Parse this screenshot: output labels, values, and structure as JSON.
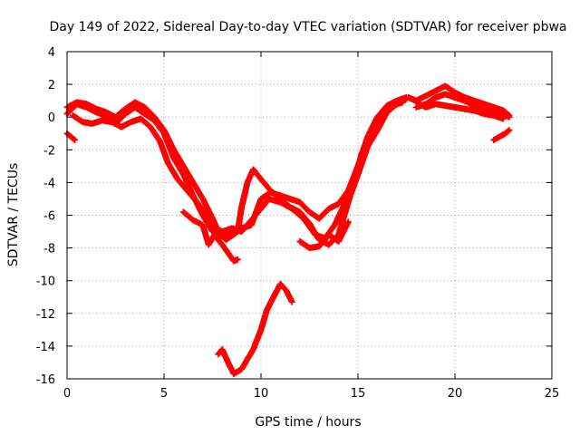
{
  "chart_data": {
    "type": "scatter",
    "title": "Day 149 of 2022, Sidereal Day-to-day VTEC variation (SDTVAR) for receiver pbwa",
    "xlabel": "GPS time / hours",
    "ylabel": "SDTVAR / TECUs",
    "xlim": [
      0,
      25
    ],
    "ylim": [
      -16,
      4
    ],
    "xticks": [
      0,
      5,
      10,
      15,
      20,
      25
    ],
    "yticks": [
      -16,
      -14,
      -12,
      -10,
      -8,
      -6,
      -4,
      -2,
      0,
      2,
      4
    ],
    "grid": true,
    "legend": "none",
    "series_color": "#ff0000",
    "series": [
      {
        "name": "trace-1",
        "points": [
          [
            0,
            0.2
          ],
          [
            0.5,
            0.8
          ],
          [
            1.0,
            0.6
          ],
          [
            1.5,
            0.3
          ],
          [
            2.0,
            0.1
          ],
          [
            2.5,
            -0.4
          ],
          [
            3.0,
            0.2
          ],
          [
            3.5,
            0.6
          ],
          [
            4.0,
            0.2
          ],
          [
            4.5,
            -0.2
          ],
          [
            5.0,
            -1.0
          ],
          [
            5.5,
            -2.5
          ],
          [
            6.0,
            -3.5
          ],
          [
            6.5,
            -4.8
          ],
          [
            7.0,
            -6.0
          ],
          [
            7.5,
            -7.0
          ],
          [
            8.0,
            -7.3
          ],
          [
            8.5,
            -7.0
          ],
          [
            9.0,
            -6.8
          ],
          [
            9.5,
            -6.6
          ],
          [
            10.0,
            -5.0
          ],
          [
            10.5,
            -4.6
          ],
          [
            11.0,
            -4.8
          ],
          [
            11.5,
            -5.0
          ],
          [
            12.0,
            -5.2
          ],
          [
            12.5,
            -5.8
          ],
          [
            13.0,
            -6.2
          ],
          [
            13.5,
            -5.6
          ],
          [
            14.0,
            -5.3
          ],
          [
            14.5,
            -4.5
          ],
          [
            15.0,
            -3.0
          ],
          [
            15.5,
            -1.2
          ],
          [
            16.0,
            0.0
          ],
          [
            16.5,
            0.7
          ],
          [
            17.0,
            1.0
          ],
          [
            17.5,
            1.2
          ]
        ]
      },
      {
        "name": "trace-2",
        "points": [
          [
            0,
            0.6
          ],
          [
            0.5,
            0.9
          ],
          [
            1.0,
            0.8
          ],
          [
            1.5,
            0.5
          ],
          [
            2.0,
            0.3
          ],
          [
            2.5,
            0.0
          ],
          [
            3.0,
            0.5
          ],
          [
            3.5,
            0.9
          ],
          [
            4.0,
            0.6
          ],
          [
            4.5,
            0.0
          ],
          [
            5.0,
            -0.8
          ],
          [
            5.5,
            -2.0
          ],
          [
            6.0,
            -3.0
          ],
          [
            6.5,
            -4.0
          ],
          [
            7.0,
            -5.0
          ],
          [
            7.5,
            -6.2
          ],
          [
            7.8,
            -7.0
          ],
          [
            8.2,
            -7.5
          ],
          [
            8.8,
            -7.0
          ],
          [
            9.0,
            -5.5
          ],
          [
            9.3,
            -4.0
          ],
          [
            9.6,
            -3.2
          ],
          [
            10.0,
            -3.8
          ],
          [
            10.5,
            -4.5
          ],
          [
            11.0,
            -5.0
          ],
          [
            11.5,
            -5.5
          ],
          [
            12.0,
            -5.8
          ],
          [
            12.5,
            -6.5
          ],
          [
            13.0,
            -7.5
          ],
          [
            13.5,
            -7.8
          ],
          [
            14.0,
            -7.2
          ],
          [
            14.3,
            -6.0
          ],
          [
            14.6,
            -4.8
          ],
          [
            15.0,
            -3.5
          ],
          [
            15.5,
            -1.8
          ],
          [
            16.0,
            -0.8
          ],
          [
            16.5,
            0.3
          ],
          [
            17.0,
            0.8
          ],
          [
            17.5,
            1.1
          ]
        ]
      },
      {
        "name": "trace-3",
        "points": [
          [
            0.3,
            0.1
          ],
          [
            0.8,
            -0.3
          ],
          [
            1.3,
            -0.4
          ],
          [
            1.8,
            -0.2
          ],
          [
            2.3,
            -0.3
          ],
          [
            2.8,
            -0.6
          ],
          [
            3.3,
            -0.3
          ],
          [
            3.8,
            -0.1
          ],
          [
            4.3,
            -0.6
          ],
          [
            4.8,
            -1.5
          ],
          [
            5.2,
            -2.8
          ],
          [
            5.7,
            -3.8
          ],
          [
            6.2,
            -4.5
          ],
          [
            6.7,
            -5.2
          ],
          [
            7.2,
            -6.0
          ],
          [
            7.6,
            -6.8
          ],
          [
            8.0,
            -7.0
          ],
          [
            8.5,
            -6.8
          ],
          [
            9.0,
            -7.0
          ],
          [
            9.5,
            -6.3
          ],
          [
            10.0,
            -5.6
          ],
          [
            10.4,
            -5.0
          ],
          [
            11.0,
            -5.2
          ],
          [
            11.6,
            -5.6
          ],
          [
            12.2,
            -6.2
          ],
          [
            12.8,
            -7.2
          ],
          [
            13.3,
            -7.4
          ],
          [
            13.8,
            -6.6
          ],
          [
            14.2,
            -5.6
          ],
          [
            14.8,
            -4.0
          ],
          [
            15.2,
            -2.2
          ],
          [
            15.8,
            -0.6
          ],
          [
            16.3,
            0.2
          ],
          [
            16.8,
            0.7
          ],
          [
            17.3,
            0.9
          ]
        ]
      },
      {
        "name": "trace-4",
        "points": [
          [
            6.0,
            -5.8
          ],
          [
            6.5,
            -6.3
          ],
          [
            7.0,
            -6.6
          ],
          [
            7.3,
            -7.8
          ],
          [
            7.6,
            -7.2
          ],
          [
            8.0,
            -7.8
          ],
          [
            8.3,
            -8.3
          ],
          [
            8.6,
            -8.8
          ],
          [
            8.8,
            -8.7
          ]
        ]
      },
      {
        "name": "trace-5",
        "points": [
          [
            12.0,
            -7.6
          ],
          [
            12.5,
            -8.0
          ],
          [
            13.0,
            -7.9
          ],
          [
            13.5,
            -7.2
          ],
          [
            14.0,
            -7.6
          ],
          [
            14.5,
            -6.4
          ]
        ]
      },
      {
        "name": "trace-6",
        "points": [
          [
            0,
            -1.0
          ],
          [
            0.2,
            -1.2
          ],
          [
            0.4,
            -1.4
          ]
        ]
      },
      {
        "name": "trace-7",
        "points": [
          [
            7.8,
            -14.5
          ],
          [
            8.0,
            -14.2
          ],
          [
            8.3,
            -15.0
          ],
          [
            8.6,
            -15.7
          ],
          [
            9.0,
            -15.4
          ],
          [
            9.3,
            -14.8
          ],
          [
            9.6,
            -14.2
          ],
          [
            10.0,
            -13.0
          ],
          [
            10.3,
            -11.8
          ],
          [
            10.6,
            -11.1
          ],
          [
            11.0,
            -10.2
          ],
          [
            11.3,
            -10.6
          ],
          [
            11.6,
            -11.3
          ]
        ]
      },
      {
        "name": "trace-8",
        "points": [
          [
            17.6,
            1.2
          ],
          [
            18.0,
            1.0
          ],
          [
            18.5,
            1.3
          ],
          [
            19.0,
            1.6
          ],
          [
            19.5,
            1.9
          ],
          [
            20.0,
            1.5
          ],
          [
            20.5,
            1.2
          ],
          [
            21.0,
            1.0
          ],
          [
            21.5,
            0.8
          ],
          [
            22.0,
            0.6
          ],
          [
            22.5,
            0.4
          ],
          [
            22.8,
            0.1
          ]
        ]
      },
      {
        "name": "trace-9",
        "points": [
          [
            18.0,
            0.6
          ],
          [
            18.5,
            0.8
          ],
          [
            19.0,
            1.2
          ],
          [
            19.5,
            1.4
          ],
          [
            20.0,
            1.2
          ],
          [
            20.5,
            1.0
          ],
          [
            21.0,
            0.7
          ],
          [
            21.5,
            0.4
          ],
          [
            22.0,
            0.3
          ],
          [
            22.5,
            0.2
          ],
          [
            22.8,
            0.0
          ]
        ]
      },
      {
        "name": "trace-10",
        "points": [
          [
            18.0,
            0.9
          ],
          [
            18.5,
            0.6
          ],
          [
            19.0,
            0.8
          ],
          [
            19.5,
            0.7
          ],
          [
            20.0,
            0.6
          ],
          [
            20.5,
            0.5
          ],
          [
            21.0,
            0.4
          ],
          [
            21.5,
            0.2
          ],
          [
            22.0,
            0.1
          ],
          [
            22.5,
            -0.1
          ]
        ]
      },
      {
        "name": "trace-11",
        "points": [
          [
            22.0,
            -1.4
          ],
          [
            22.3,
            -1.2
          ],
          [
            22.6,
            -1.0
          ],
          [
            22.8,
            -0.8
          ]
        ]
      }
    ]
  }
}
